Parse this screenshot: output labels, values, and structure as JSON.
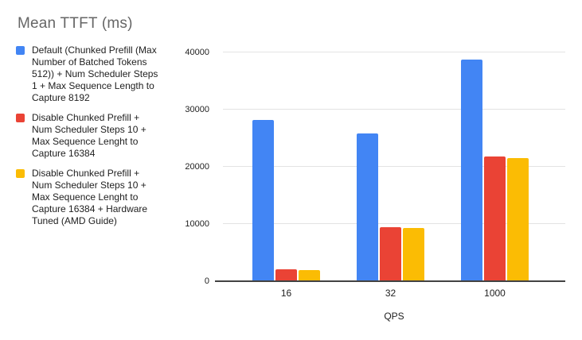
{
  "title": "Mean TTFT (ms)",
  "legend": {
    "items": [
      {
        "color": "#4285F4",
        "lines": [
          "Default (Chunked Prefill (Max",
          "Number of Batched Tokens",
          "512)) + Num Scheduler Steps",
          "1 + Max Sequence Length to",
          "Capture 8192"
        ]
      },
      {
        "color": "#EA4335",
        "lines": [
          "Disable Chunked Prefill +",
          "Num Scheduler Steps 10 +",
          "Max Sequence Lenght to",
          "Capture 16384"
        ]
      },
      {
        "color": "#FBBC04",
        "lines": [
          "Disable Chunked Prefill +",
          "Num Scheduler Steps 10 +",
          "Max Sequence Lenght to",
          "Capture 16384 + Hardware",
          "Tuned (AMD Guide)"
        ]
      }
    ]
  },
  "chart_data": {
    "type": "bar",
    "title": "Mean TTFT (ms)",
    "categories": [
      "16",
      "32",
      "1000"
    ],
    "series": [
      {
        "name": "Default (Chunked Prefill (Max Number of Batched Tokens 512)) + Num Scheduler Steps 1 + Max Sequence Length to Capture 8192",
        "color": "#4285F4",
        "values": [
          28200,
          25800,
          38800
        ]
      },
      {
        "name": "Disable Chunked Prefill + Num Scheduler Steps 10 + Max Sequence Lenght to Capture 16384",
        "color": "#EA4335",
        "values": [
          2100,
          9500,
          21800
        ]
      },
      {
        "name": "Disable Chunked Prefill + Num Scheduler Steps 10 + Max Sequence Lenght to Capture 16384 + Hardware Tuned (AMD Guide)",
        "color": "#FBBC04",
        "values": [
          2000,
          9300,
          21500
        ]
      }
    ],
    "xlabel": "QPS",
    "ylabel": "",
    "ylim": [
      0,
      40000
    ],
    "yticks": [
      0,
      10000,
      20000,
      30000,
      40000
    ],
    "grid": true,
    "legend_position": "left",
    "colors": {
      "gridline": "#e3e3e3",
      "baseline": "#424242",
      "title_text": "#666666",
      "label_text": "#212121"
    }
  }
}
